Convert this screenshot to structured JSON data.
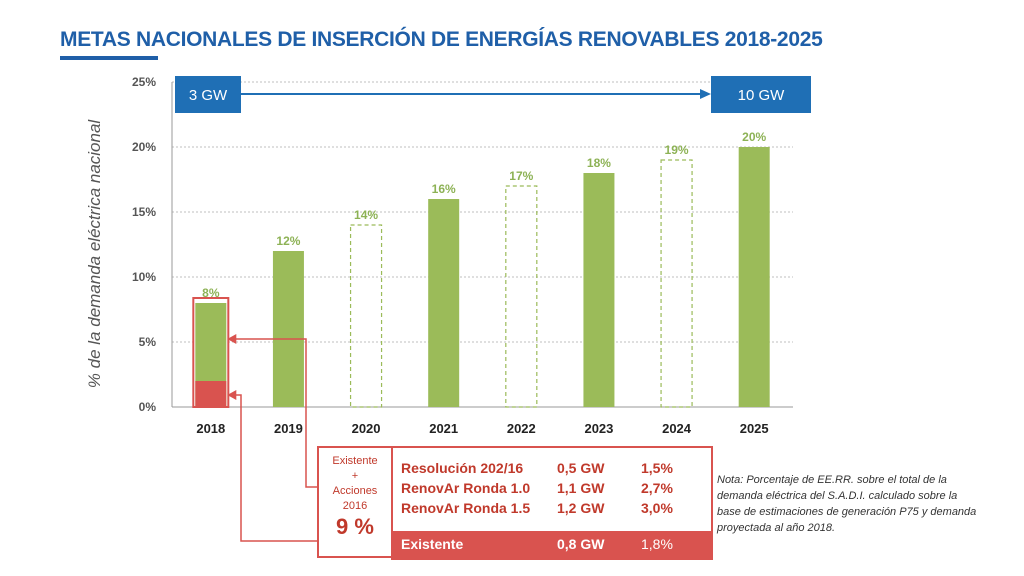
{
  "title": "METAS NACIONALES DE INSERCIÓN DE ENERGÍAS RENOVABLES 2018-2025",
  "colors": {
    "title": "#1f5fa8",
    "bar_green": "#9bbb59",
    "existing_red": "#d9534f",
    "gw_box": "#1f6fb5",
    "arrow": "#1f6fb5",
    "label_green": "#8db255"
  },
  "chart_data": {
    "type": "bar",
    "ylabel": "% de la demanda eléctrica nacional",
    "xlabel": "",
    "ylim": [
      0,
      25
    ],
    "yticks": [
      "0%",
      "5%",
      "10%",
      "15%",
      "20%",
      "25%"
    ],
    "grid": true,
    "categories": [
      "2018",
      "2019",
      "2020",
      "2021",
      "2022",
      "2023",
      "2024",
      "2025"
    ],
    "values": [
      8,
      12,
      14,
      16,
      17,
      18,
      19,
      20
    ],
    "value_labels": [
      "8%",
      "12%",
      "14%",
      "16%",
      "17%",
      "18%",
      "19%",
      "20%"
    ],
    "bar_style": [
      "solid",
      "solid",
      "dashed-outline",
      "solid",
      "dashed-outline",
      "solid",
      "dashed-outline",
      "solid"
    ],
    "existing_2018": 2,
    "annotations": {
      "start_gw": "3 GW",
      "end_gw": "10 GW"
    }
  },
  "legend": {
    "left_lines": [
      "Existente",
      "+",
      "Acciones",
      "2016"
    ],
    "left_total": "9 %",
    "rows": [
      {
        "name": "Resolución 202/16",
        "gw": "0,5 GW",
        "pct": "1,5%"
      },
      {
        "name": "RenovAr Ronda 1.0",
        "gw": "1,1 GW",
        "pct": "2,7%"
      },
      {
        "name": "RenovAr Ronda 1.5",
        "gw": "1,2 GW",
        "pct": "3,0%"
      }
    ],
    "existing": {
      "name": "Existente",
      "gw": "0,8 GW",
      "pct": "1,8%"
    }
  },
  "note": "Nota: Porcentaje de EE.RR. sobre el total de la demanda eléctrica del S.A.D.I. calculado sobre la base de estimaciones de generación P75 y demanda proyectada al año 2018."
}
